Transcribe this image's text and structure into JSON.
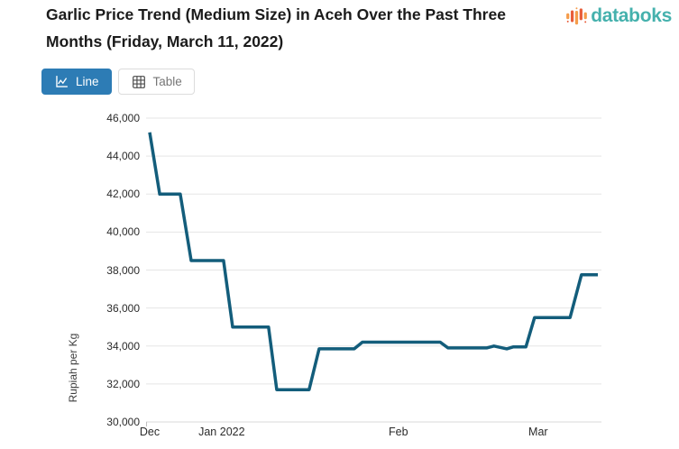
{
  "header": {
    "title": "Garlic Price Trend (Medium Size) in Aceh Over the Past Three Months (Friday, March 11, 2022)",
    "logo_text": "databoks"
  },
  "toolbar": {
    "line_label": "Line",
    "table_label": "Table"
  },
  "colors": {
    "accent_blue": "#2d7cb5",
    "series_line": "#135d7b",
    "logo_teal": "#45b1ad",
    "logo_orange": "#f59c4b",
    "logo_red": "#e85d3a",
    "gridline": "#e5e5e5",
    "axis_line": "#d8d8d8"
  },
  "chart_data": {
    "type": "line",
    "title": "Garlic Price Trend (Medium Size) in Aceh Over the Past Three Months (Friday, March 11, 2022)",
    "xlabel": "",
    "ylabel": "Rupiah per Kg",
    "ylim": [
      30000,
      46000
    ],
    "y_tick_step": 2000,
    "y_tick_labels": [
      "46,000",
      "44,000",
      "42,000",
      "40,000",
      "38,000",
      "36,000",
      "34,000",
      "32,000",
      "30,000"
    ],
    "x_tick_labels": [
      "Dec",
      "Jan 2022",
      "Feb",
      "Mar"
    ],
    "x_tick_positions": [
      0.008,
      0.166,
      0.554,
      0.861
    ],
    "grid": "horizontal",
    "legend": "none",
    "series": [
      {
        "points": [
          {
            "x": 0.008,
            "y": 45250
          },
          {
            "x": 0.03,
            "y": 42000
          },
          {
            "x": 0.075,
            "y": 42000
          },
          {
            "x": 0.099,
            "y": 38500
          },
          {
            "x": 0.17,
            "y": 38500
          },
          {
            "x": 0.19,
            "y": 35000
          },
          {
            "x": 0.269,
            "y": 35000
          },
          {
            "x": 0.287,
            "y": 31700
          },
          {
            "x": 0.358,
            "y": 31700
          },
          {
            "x": 0.38,
            "y": 33850
          },
          {
            "x": 0.457,
            "y": 33850
          },
          {
            "x": 0.475,
            "y": 34200
          },
          {
            "x": 0.646,
            "y": 34200
          },
          {
            "x": 0.663,
            "y": 33900
          },
          {
            "x": 0.748,
            "y": 33900
          },
          {
            "x": 0.764,
            "y": 34000
          },
          {
            "x": 0.792,
            "y": 33850
          },
          {
            "x": 0.806,
            "y": 33950
          },
          {
            "x": 0.834,
            "y": 33950
          },
          {
            "x": 0.853,
            "y": 35500
          },
          {
            "x": 0.931,
            "y": 35500
          },
          {
            "x": 0.956,
            "y": 37750
          },
          {
            "x": 0.992,
            "y": 37750
          }
        ]
      }
    ]
  }
}
